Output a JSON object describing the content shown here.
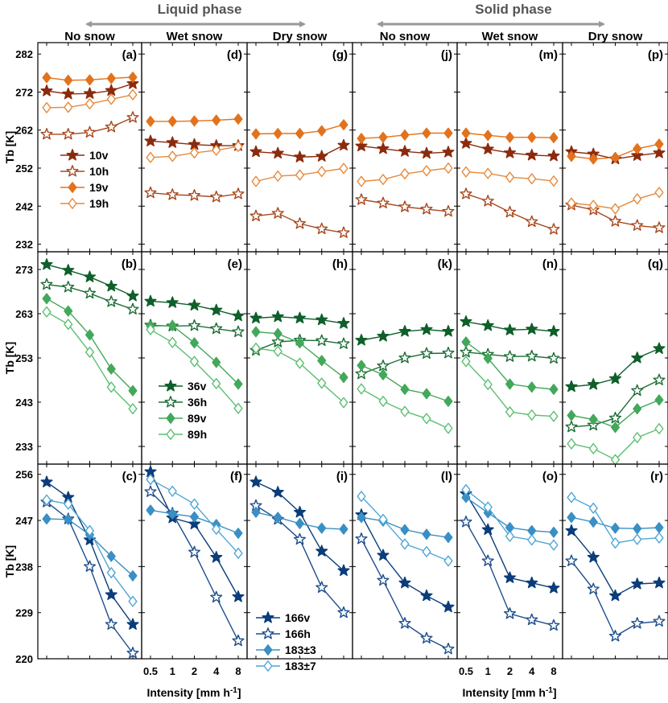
{
  "header": {
    "liquid_label": "Liquid phase",
    "solid_label": "Solid phase",
    "col_titles": [
      "No snow",
      "Wet snow",
      "Dry snow",
      "No snow",
      "Wet snow",
      "Dry snow"
    ]
  },
  "xaxis": {
    "label_main": "Intensity [mm h",
    "label_sup": "-1",
    "label_end": "]",
    "ticks": [
      "0.5",
      "1",
      "2",
      "4",
      "8"
    ]
  },
  "colors": {
    "10v": "#8B2B0E",
    "10h": "#A8481E",
    "19v": "#E2731C",
    "19h": "#E68A3C",
    "36v": "#0F5F2A",
    "36h": "#1E6E36",
    "89v": "#43A85A",
    "89h": "#5CBF72",
    "166v": "#0B3D7A",
    "166h": "#1E4E8C",
    "183_3": "#3A8FC4",
    "183_7": "#4FA6D6",
    "arrow": "#999999",
    "axis": "#000000"
  },
  "chart_data": [
    {
      "type": "line",
      "row": 0,
      "ylabel": "Tb [K]",
      "ylim": [
        230,
        285
      ],
      "yticks": [
        232,
        242,
        252,
        262,
        272,
        282
      ],
      "legend": [
        {
          "key": "10v",
          "label": "10v",
          "marker": "star",
          "filled": true
        },
        {
          "key": "10h",
          "label": "10h",
          "marker": "star",
          "filled": false
        },
        {
          "key": "19v",
          "label": "19v",
          "marker": "diamond",
          "filled": true
        },
        {
          "key": "19h",
          "label": "19h",
          "marker": "diamond",
          "filled": false
        }
      ],
      "panels": [
        {
          "label": "(a)",
          "series": {
            "10v": [
              272.3,
              271.5,
              271.6,
              272.4,
              274.2
            ],
            "10h": [
              260.9,
              260.9,
              261.4,
              262.8,
              265.3
            ],
            "19v": [
              275.8,
              275.1,
              275.2,
              275.6,
              275.9
            ],
            "19h": [
              267.9,
              268.0,
              268.9,
              270.1,
              271.3
            ]
          }
        },
        {
          "label": "(d)",
          "series": {
            "10v": [
              259.1,
              258.7,
              258.2,
              257.9,
              257.9
            ],
            "10h": [
              245.5,
              245.0,
              244.8,
              244.4,
              245.2
            ],
            "19v": [
              264.3,
              264.3,
              264.4,
              264.6,
              264.9
            ],
            "19h": [
              254.8,
              255.1,
              256.0,
              256.7,
              257.7
            ]
          }
        },
        {
          "label": "(g)",
          "series": {
            "10v": [
              256.3,
              255.9,
              254.9,
              255.1,
              258.0
            ],
            "10h": [
              239.4,
              240.1,
              237.4,
              236.0,
              235.0
            ],
            "19v": [
              261.0,
              261.1,
              261.1,
              261.8,
              263.4
            ],
            "19h": [
              248.5,
              249.9,
              250.2,
              251.1,
              251.9
            ]
          }
        },
        {
          "label": "(j)",
          "series": {
            "10v": [
              257.8,
              257.1,
              256.4,
              255.9,
              256.2
            ],
            "10h": [
              243.7,
              242.8,
              241.8,
              241.2,
              240.6
            ],
            "19v": [
              259.8,
              260.1,
              260.7,
              261.2,
              261.2
            ],
            "19h": [
              248.5,
              249.0,
              250.5,
              251.3,
              252.0
            ]
          }
        },
        {
          "label": "(m)",
          "series": {
            "10v": [
              258.5,
              257.0,
              256.0,
              255.4,
              255.2
            ],
            "10h": [
              245.2,
              243.3,
              240.4,
              237.9,
              235.9
            ],
            "19v": [
              261.2,
              260.6,
              260.1,
              260.1,
              260.0
            ],
            "19h": [
              251.0,
              250.6,
              249.6,
              249.2,
              248.6
            ]
          }
        },
        {
          "label": "(p)",
          "series": {
            "10v": [
              256.3,
              255.7,
              254.4,
              255.3,
              256.0
            ],
            "10h": [
              242.3,
              241.0,
              238.0,
              236.9,
              236.3
            ],
            "19v": [
              255.1,
              254.4,
              254.8,
              257.1,
              258.3
            ],
            "19h": [
              242.8,
              242.2,
              241.3,
              243.9,
              245.6
            ]
          }
        }
      ]
    },
    {
      "type": "line",
      "row": 1,
      "ylabel": "Tb [K]",
      "ylim": [
        229,
        277
      ],
      "yticks": [
        233,
        243,
        253,
        263,
        273
      ],
      "legend": [
        {
          "key": "36v",
          "label": "36v",
          "marker": "star",
          "filled": true
        },
        {
          "key": "36h",
          "label": "36h",
          "marker": "star",
          "filled": false
        },
        {
          "key": "89v",
          "label": "89v",
          "marker": "diamond",
          "filled": true
        },
        {
          "key": "89h",
          "label": "89h",
          "marker": "diamond",
          "filled": false
        }
      ],
      "panels": [
        {
          "label": "(b)",
          "series": {
            "36v": [
              274.1,
              272.8,
              271.3,
              269.2,
              267.0
            ],
            "36h": [
              269.6,
              269.0,
              267.6,
              265.7,
              264.0
            ],
            "89v": [
              266.4,
              263.6,
              258.2,
              250.5,
              245.6
            ],
            "89h": [
              263.4,
              260.6,
              254.3,
              246.4,
              241.5
            ]
          }
        },
        {
          "label": "(e)",
          "series": {
            "36v": [
              265.8,
              265.5,
              264.9,
              263.8,
              262.5
            ],
            "36h": [
              260.4,
              260.2,
              260.3,
              259.6,
              258.9
            ],
            "89v": [
              260.2,
              260.3,
              256.4,
              252.0,
              247.1
            ],
            "89h": [
              259.4,
              256.5,
              252.2,
              247.2,
              241.6
            ]
          }
        },
        {
          "label": "(h)",
          "series": {
            "36v": [
              262.0,
              262.3,
              262.0,
              261.6,
              260.8
            ],
            "36h": [
              254.7,
              256.6,
              257.0,
              256.9,
              256.2
            ],
            "89v": [
              258.9,
              258.5,
              256.4,
              252.4,
              248.6
            ],
            "89h": [
              255.2,
              254.5,
              251.8,
              247.3,
              242.9
            ]
          }
        },
        {
          "label": "(k)",
          "series": {
            "36v": [
              257.0,
              257.9,
              259.0,
              259.4,
              259.0
            ],
            "36h": [
              249.4,
              251.2,
              253.0,
              254.0,
              254.1
            ],
            "89v": [
              251.3,
              249.2,
              245.9,
              244.9,
              243.2
            ],
            "89h": [
              246.0,
              243.2,
              240.9,
              239.3,
              237.1
            ]
          }
        },
        {
          "label": "(n)",
          "series": {
            "36v": [
              261.2,
              260.3,
              259.3,
              259.5,
              259.0
            ],
            "36h": [
              254.3,
              253.8,
              253.3,
              253.4,
              252.9
            ],
            "89v": [
              256.6,
              252.9,
              247.1,
              246.4,
              245.9
            ],
            "89h": [
              252.2,
              247.0,
              240.8,
              240.1,
              239.8
            ]
          }
        },
        {
          "label": "(q)",
          "series": {
            "36v": [
              246.5,
              247.0,
              248.3,
              253.0,
              255.1
            ],
            "36h": [
              237.4,
              237.8,
              239.4,
              245.6,
              248.0
            ],
            "89v": [
              240.0,
              239.1,
              237.3,
              241.5,
              243.5
            ],
            "89h": [
              233.6,
              232.5,
              230.0,
              235.0,
              237.0
            ]
          }
        }
      ]
    },
    {
      "type": "line",
      "row": 2,
      "ylabel": "Tb [K]",
      "ylim": [
        220,
        258
      ],
      "yticks": [
        220,
        229,
        238,
        247,
        256
      ],
      "legend": [
        {
          "key": "166v",
          "label": "166v",
          "marker": "star",
          "filled": true
        },
        {
          "key": "166h",
          "label": "166h",
          "marker": "star",
          "filled": false
        },
        {
          "key": "183_3",
          "label": "183±3",
          "marker": "diamond",
          "filled": true
        },
        {
          "key": "183_7",
          "label": "183±7",
          "marker": "diamond",
          "filled": false
        }
      ],
      "panels": [
        {
          "label": "(c)",
          "series": {
            "166v": [
              254.5,
              251.5,
              243.2,
              232.5,
              226.7
            ],
            "166h": [
              250.6,
              247.3,
              238.0,
              226.7,
              221.1
            ],
            "183_3": [
              247.3,
              247.2,
              244.2,
              240.0,
              236.2
            ],
            "183_7": [
              251.0,
              250.2,
              245.0,
              236.8,
              231.2
            ]
          }
        },
        {
          "label": "(f)",
          "series": {
            "166v": [
              256.5,
              247.5,
              246.3,
              239.8,
              232.1
            ],
            "166h": [
              252.6,
              248.4,
              240.8,
              232.0,
              223.5
            ],
            "183_3": [
              249.0,
              248.3,
              247.7,
              246.2,
              244.5
            ],
            "183_7": [
              255.0,
              252.7,
              250.2,
              245.3,
              240.6
            ]
          }
        },
        {
          "label": "(i)",
          "series": {
            "166v": [
              254.5,
              252.5,
              248.6,
              241.0,
              237.2
            ],
            "166h": [
              249.9,
              247.2,
              243.3,
              233.9,
              229.0
            ],
            "183_3": [
              248.6,
              247.6,
              246.4,
              245.5,
              245.3
            ]
          }
        },
        {
          "label": "(l)",
          "series": {
            "166v": [
              248.1,
              240.2,
              234.8,
              232.3,
              230.1
            ],
            "166h": [
              243.4,
              235.3,
              226.9,
              224.0,
              221.9
            ],
            "183_3": [
              247.6,
              246.9,
              245.2,
              244.3,
              243.7
            ],
            "183_7": [
              251.7,
              247.2,
              242.4,
              240.9,
              239.1
            ]
          }
        },
        {
          "label": "(o)",
          "series": {
            "166v": [
              252.2,
              245.2,
              235.8,
              234.8,
              233.8
            ],
            "166h": [
              246.7,
              239.1,
              228.8,
              227.6,
              226.5
            ],
            "183_3": [
              251.5,
              248.5,
              245.6,
              245.0,
              244.7
            ],
            "183_7": [
              253.0,
              249.6,
              243.9,
              243.2,
              242.2
            ]
          }
        },
        {
          "label": "(r)",
          "series": {
            "166v": [
              245.0,
              239.8,
              232.3,
              234.6,
              234.8
            ],
            "166h": [
              239.1,
              233.6,
              224.4,
              226.9,
              227.3
            ],
            "183_3": [
              247.6,
              246.7,
              245.5,
              245.4,
              245.6
            ],
            "183_7": [
              251.5,
              249.4,
              242.6,
              243.3,
              243.6
            ]
          }
        }
      ]
    }
  ]
}
